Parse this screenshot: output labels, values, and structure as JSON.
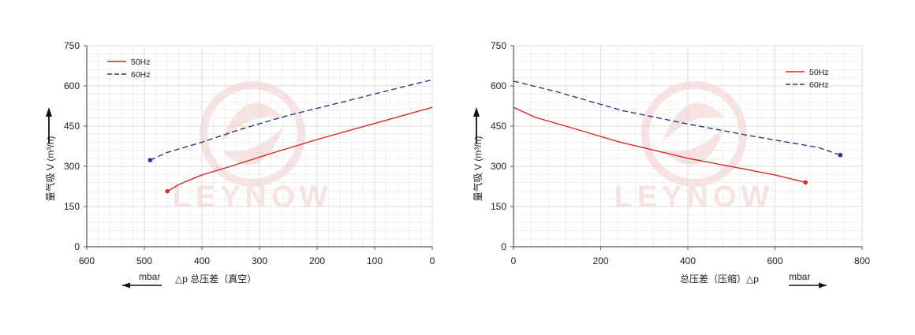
{
  "colors": {
    "series_50hz": "#d42a2a",
    "series_60hz": "#253a80",
    "grid": "#dcdcdc",
    "axis": "#555555",
    "watermark": "#f3c9c9"
  },
  "watermark_text": "LEYNOW",
  "chart_data": [
    {
      "type": "line",
      "name": "vacuum",
      "ylabel": "量气吸 V (m³/h)",
      "xlabel": "△p  总压差（真空）",
      "unit_label": "mbar",
      "unit_arrow": "left",
      "xlim": [
        600,
        0
      ],
      "ylim": [
        0,
        750
      ],
      "xticks": [
        "600",
        "500",
        "400",
        "300",
        "200",
        "100",
        "0"
      ],
      "xtick_values": [
        600,
        500,
        400,
        300,
        200,
        100,
        0
      ],
      "yticks": [
        "0",
        "150",
        "300",
        "450",
        "600",
        "750"
      ],
      "ytick_values": [
        0,
        150,
        300,
        450,
        600,
        750
      ],
      "grid": true,
      "legend_position": "top-left",
      "series": [
        {
          "name": "50Hz",
          "style": "solid",
          "color": "#d42a2a",
          "x": [
            460,
            440,
            400,
            350,
            280,
            200,
            100,
            0
          ],
          "y": [
            207,
            232,
            268,
            300,
            348,
            400,
            460,
            520
          ]
        },
        {
          "name": "60Hz",
          "style": "dashed",
          "color": "#253a80",
          "x": [
            490,
            460,
            400,
            330,
            250,
            150,
            50,
            0
          ],
          "y": [
            323,
            352,
            390,
            440,
            490,
            543,
            597,
            623
          ]
        }
      ]
    },
    {
      "type": "line",
      "name": "pressure",
      "ylabel": "量气吸 V (m³/h)",
      "xlabel": "总压差（压缩）△p",
      "unit_label": "mbar",
      "unit_arrow": "right",
      "xlim": [
        0,
        800
      ],
      "ylim": [
        0,
        750
      ],
      "xticks": [
        "0",
        "200",
        "400",
        "600",
        "800"
      ],
      "xtick_values": [
        0,
        200,
        400,
        600,
        800
      ],
      "yticks": [
        "0",
        "150",
        "300",
        "450",
        "600",
        "750"
      ],
      "ytick_values": [
        0,
        150,
        300,
        450,
        600,
        750
      ],
      "grid": true,
      "legend_position": "top-right",
      "series": [
        {
          "name": "50Hz",
          "style": "solid",
          "color": "#d42a2a",
          "x": [
            0,
            50,
            120,
            240,
            400,
            600,
            670
          ],
          "y": [
            520,
            483,
            450,
            392,
            330,
            268,
            240
          ]
        },
        {
          "name": "60Hz",
          "style": "dashed",
          "color": "#253a80",
          "x": [
            0,
            100,
            250,
            400,
            550,
            700,
            750
          ],
          "y": [
            618,
            578,
            508,
            458,
            412,
            370,
            342
          ]
        }
      ]
    }
  ]
}
